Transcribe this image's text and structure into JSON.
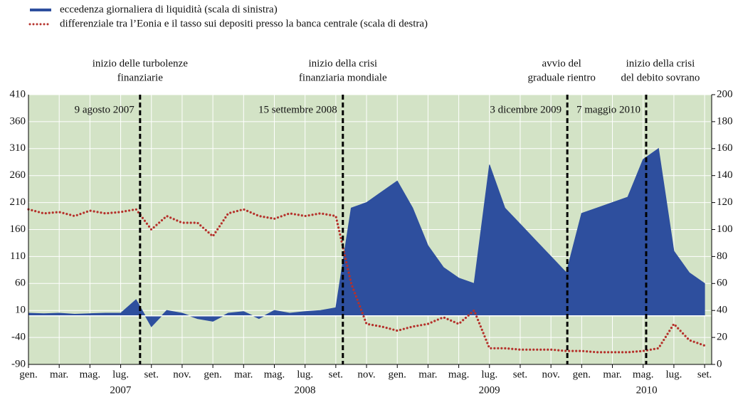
{
  "chart_data": {
    "type": "line",
    "legend": [
      "eccedenza giornaliera di liquidità (scala di sinistra)",
      "differenziale tra l’Eonia e il tasso sui depositi presso la banca centrale (scala di destra)"
    ],
    "x": [
      "2007-01",
      "2007-02",
      "2007-03",
      "2007-04",
      "2007-05",
      "2007-06",
      "2007-07",
      "2007-08",
      "2007-09",
      "2007-10",
      "2007-11",
      "2007-12",
      "2008-01",
      "2008-02",
      "2008-03",
      "2008-04",
      "2008-05",
      "2008-06",
      "2008-07",
      "2008-08",
      "2008-09",
      "2008-10",
      "2008-11",
      "2008-12",
      "2009-01",
      "2009-02",
      "2009-03",
      "2009-04",
      "2009-05",
      "2009-06",
      "2009-07",
      "2009-08",
      "2009-09",
      "2009-10",
      "2009-11",
      "2009-12",
      "2010-01",
      "2010-02",
      "2010-03",
      "2010-04",
      "2010-05",
      "2010-06",
      "2010-07",
      "2010-08",
      "2010-09"
    ],
    "series": [
      {
        "name": "eccedenza giornaliera di liquidità (scala di sinistra)",
        "color": "#2e4f9e",
        "axis": "y",
        "values": [
          5,
          4,
          5,
          3,
          4,
          5,
          5,
          30,
          -20,
          10,
          5,
          -5,
          -10,
          5,
          8,
          -5,
          10,
          5,
          8,
          10,
          15,
          200,
          210,
          230,
          250,
          200,
          130,
          90,
          70,
          60,
          280,
          200,
          170,
          140,
          110,
          80,
          190,
          200,
          210,
          220,
          290,
          310,
          120,
          80,
          60
        ]
      },
      {
        "name": "differenziale tra l’Eonia e il tasso sui depositi presso la banca centrale (scala di destra)",
        "color": "#b5312b",
        "axis": "y2",
        "values": [
          115,
          112,
          113,
          110,
          114,
          112,
          113,
          115,
          100,
          110,
          105,
          105,
          95,
          112,
          115,
          110,
          108,
          112,
          110,
          112,
          110,
          60,
          30,
          28,
          25,
          28,
          30,
          35,
          30,
          40,
          12,
          12,
          11,
          11,
          11,
          10,
          10,
          9,
          9,
          9,
          10,
          12,
          30,
          18,
          14
        ]
      }
    ],
    "xlim": [
      "2007-01-01",
      "2010-09-15"
    ],
    "xticks": [
      {
        "value": "2007-01",
        "label": "gen."
      },
      {
        "value": "2007-03",
        "label": "mar."
      },
      {
        "value": "2007-05",
        "label": "mag."
      },
      {
        "value": "2007-07",
        "label": "lug."
      },
      {
        "value": "2007-09",
        "label": "set."
      },
      {
        "value": "2007-11",
        "label": "nov."
      },
      {
        "value": "2008-01",
        "label": "gen."
      },
      {
        "value": "2008-03",
        "label": "mar."
      },
      {
        "value": "2008-05",
        "label": "mag."
      },
      {
        "value": "2008-07",
        "label": "lug."
      },
      {
        "value": "2008-09",
        "label": "set."
      },
      {
        "value": "2008-11",
        "label": "nov."
      },
      {
        "value": "2009-01",
        "label": "gen."
      },
      {
        "value": "2009-03",
        "label": "mar."
      },
      {
        "value": "2009-05",
        "label": "mag."
      },
      {
        "value": "2009-07",
        "label": "lug."
      },
      {
        "value": "2009-09",
        "label": "set."
      },
      {
        "value": "2009-11",
        "label": "nov."
      },
      {
        "value": "2010-01",
        "label": "gen."
      },
      {
        "value": "2010-03",
        "label": "mar."
      },
      {
        "value": "2010-05",
        "label": "mag."
      },
      {
        "value": "2010-07",
        "label": "lug."
      },
      {
        "value": "2010-09",
        "label": "set."
      }
    ],
    "years": [
      "2007",
      "2008",
      "2009",
      "2010"
    ],
    "ylim": [
      -90,
      410
    ],
    "yticks": [
      -90,
      -40,
      10,
      60,
      110,
      160,
      210,
      260,
      310,
      360,
      410
    ],
    "y2lim": [
      0,
      200
    ],
    "y2ticks": [
      0,
      20,
      40,
      60,
      80,
      100,
      120,
      140,
      160,
      180,
      200
    ],
    "grid": true,
    "events": [
      {
        "date": "2007-08-09",
        "label": "9 agosto 2007",
        "title": [
          "inizio delle turbolenze",
          "finanziarie"
        ]
      },
      {
        "date": "2008-09-15",
        "label": "15 settembre 2008",
        "title": [
          "inizio della crisi",
          "finanziaria mondiale"
        ]
      },
      {
        "date": "2009-12-03",
        "label": "3 dicembre 2009",
        "title": [
          "avvio del",
          "graduale rientro"
        ]
      },
      {
        "date": "2010-05-07",
        "label": "7 maggio 2010",
        "title": [
          "inizio della crisi",
          "del debito sovrano"
        ]
      }
    ]
  }
}
